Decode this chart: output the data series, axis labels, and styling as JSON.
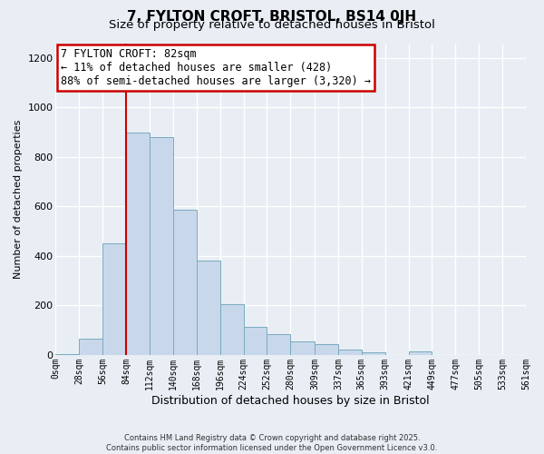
{
  "title1": "7, FYLTON CROFT, BRISTOL, BS14 0JH",
  "title2": "Size of property relative to detached houses in Bristol",
  "xlabel": "Distribution of detached houses by size in Bristol",
  "ylabel": "Number of detached properties",
  "bin_edges": [
    0,
    28,
    56,
    84,
    112,
    140,
    168,
    196,
    224,
    252,
    280,
    309,
    337,
    365,
    393,
    421,
    449,
    477,
    505,
    533,
    561
  ],
  "bar_heights": [
    5,
    65,
    450,
    900,
    880,
    585,
    380,
    205,
    115,
    85,
    55,
    45,
    22,
    12,
    0,
    15,
    0,
    0,
    0,
    0
  ],
  "bar_color": "#c8d8ea",
  "bar_edge_color": "#7aaabf",
  "vline_x": 84,
  "vline_color": "#cc0000",
  "annotation_text": "7 FYLTON CROFT: 82sqm\n← 11% of detached houses are smaller (428)\n88% of semi-detached houses are larger (3,320) →",
  "ylim": [
    0,
    1260
  ],
  "yticks": [
    0,
    200,
    400,
    600,
    800,
    1000,
    1200
  ],
  "bg_color": "#e8eef4",
  "grid_color": "#ffffff",
  "footer": "Contains HM Land Registry data © Crown copyright and database right 2025.\nContains public sector information licensed under the Open Government Licence v3.0.",
  "title_fontsize": 11,
  "subtitle_fontsize": 9.5,
  "ann_fontsize": 8.5,
  "tick_labels": [
    "0sqm",
    "28sqm",
    "56sqm",
    "84sqm",
    "112sqm",
    "140sqm",
    "168sqm",
    "196sqm",
    "224sqm",
    "252sqm",
    "280sqm",
    "309sqm",
    "337sqm",
    "365sqm",
    "393sqm",
    "421sqm",
    "449sqm",
    "477sqm",
    "505sqm",
    "533sqm",
    "561sqm"
  ]
}
